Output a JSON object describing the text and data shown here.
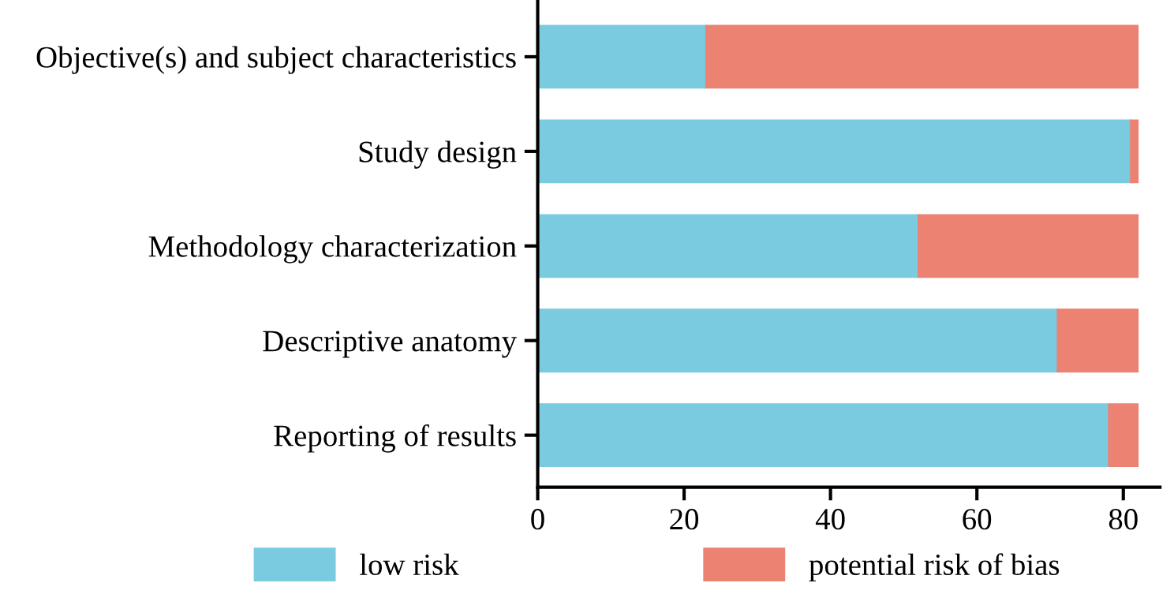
{
  "chart_data": {
    "type": "bar",
    "orientation": "horizontal",
    "stacked": true,
    "categories": [
      "Objective(s) and subject characteristics",
      "Study design",
      "Methodology characterization",
      "Descriptive anatomy",
      "Reporting of results"
    ],
    "series": [
      {
        "name": "low risk",
        "color": "#7acbe0",
        "values": [
          23,
          81,
          52,
          71,
          78
        ]
      },
      {
        "name": "potential risk of bias",
        "color": "#eb8272",
        "values": [
          59,
          1,
          30,
          11,
          4
        ]
      }
    ],
    "xlim": [
      0,
      85
    ],
    "xticks": [
      0,
      20,
      40,
      60,
      80
    ],
    "grid": false,
    "legend": "bottom"
  }
}
